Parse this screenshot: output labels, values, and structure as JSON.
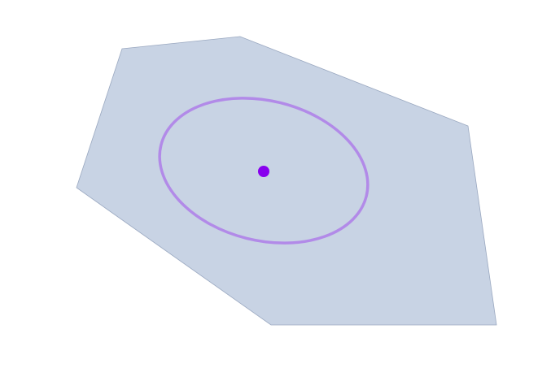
{
  "diagram": {
    "colors": {
      "background": "#ffffff",
      "polygon_fill": "#c8d3e4",
      "polygon_stroke": "#9aa8c0",
      "ellipse_stroke": "#b28ae8",
      "center_point": "#8800ee"
    }
  }
}
